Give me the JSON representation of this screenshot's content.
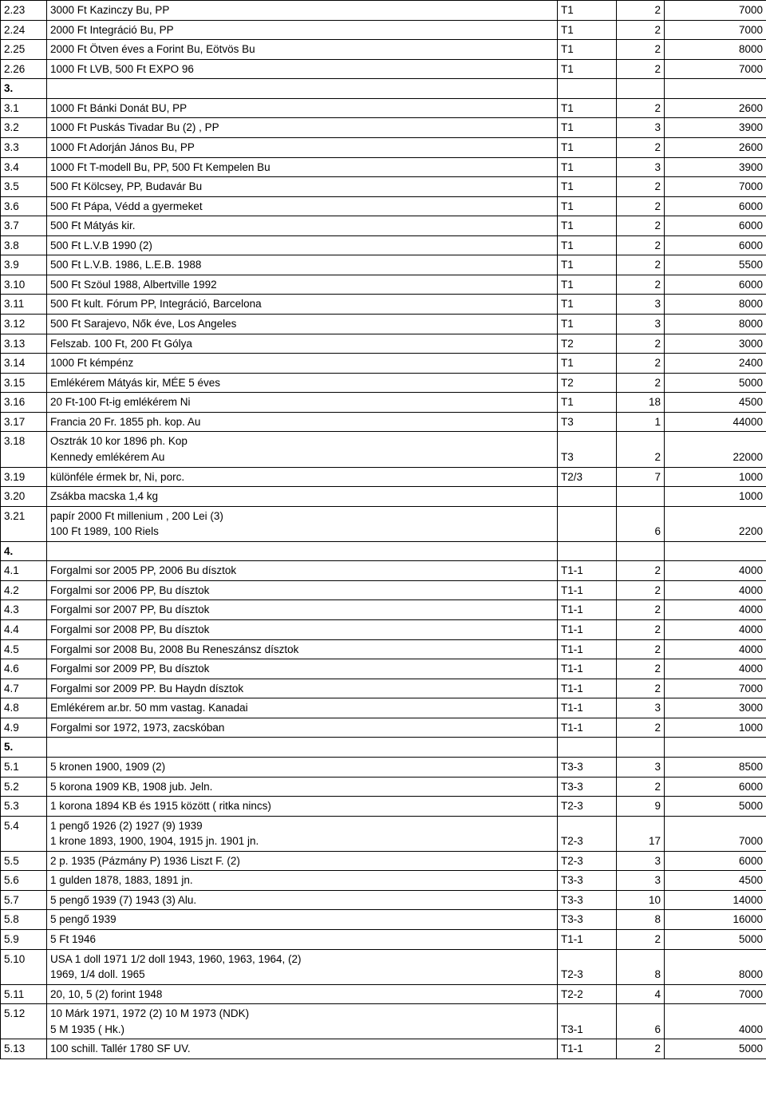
{
  "rows": [
    {
      "id": "2.23",
      "desc": "3000 Ft  Kazinczy Bu, PP",
      "grade": "T1",
      "qty": "2",
      "price": "7000"
    },
    {
      "id": "2.24",
      "desc": "2000 Ft Integráció Bu, PP",
      "grade": "T1",
      "qty": "2",
      "price": "7000"
    },
    {
      "id": "2.25",
      "desc": "2000 Ft Ötven éves a Forint   Bu, Eötvös Bu",
      "grade": "T1",
      "qty": "2",
      "price": "8000"
    },
    {
      "id": "2.26",
      "desc": "1000 Ft LVB, 500 Ft  EXPO 96",
      "grade": "T1",
      "qty": "2",
      "price": "7000"
    },
    {
      "id": "3.",
      "desc": "",
      "grade": "",
      "qty": "",
      "price": "",
      "bold": true
    },
    {
      "id": "3.1",
      "desc": "1000 Ft  Bánki Donát  BU, PP",
      "grade": "T1",
      "qty": "2",
      "price": "2600"
    },
    {
      "id": "3.2",
      "desc": "1000 Ft Puskás Tivadar  Bu (2) , PP",
      "grade": "T1",
      "qty": "3",
      "price": "3900"
    },
    {
      "id": "3.3",
      "desc": "1000 Ft Adorján János   Bu, PP",
      "grade": "T1",
      "qty": "2",
      "price": "2600"
    },
    {
      "id": "3.4",
      "desc": "1000 Ft T-modell Bu, PP, 500 Ft Kempelen  Bu",
      "grade": "T1",
      "qty": "3",
      "price": "3900"
    },
    {
      "id": "3.5",
      "desc": "500 Ft Kölcsey, PP, Budavár  Bu",
      "grade": "T1",
      "qty": "2",
      "price": "7000"
    },
    {
      "id": "3.6",
      "desc": "500 Ft  Pápa, Védd a gyermeket",
      "grade": "T1",
      "qty": "2",
      "price": "6000"
    },
    {
      "id": "3.7",
      "desc": "500 Ft  Mátyás kir.",
      "grade": "T1",
      "qty": "2",
      "price": "6000"
    },
    {
      "id": "3.8",
      "desc": "500 Ft L.V.B  1990 (2)",
      "grade": "T1",
      "qty": "2",
      "price": "6000"
    },
    {
      "id": "3.9",
      "desc": "500 Ft L.V.B. 1986, L.E.B.  1988",
      "grade": "T1",
      "qty": "2",
      "price": "5500"
    },
    {
      "id": "3.10",
      "desc": "500 Ft  Szöul  1988, Albertville  1992",
      "grade": "T1",
      "qty": "2",
      "price": "6000"
    },
    {
      "id": "3.11",
      "desc": "500 Ft kult. Fórum PP, Integráció, Barcelona",
      "grade": "T1",
      "qty": "3",
      "price": "8000"
    },
    {
      "id": "3.12",
      "desc": "500 Ft Sarajevo, Nők éve, Los Angeles",
      "grade": "T1",
      "qty": "3",
      "price": "8000"
    },
    {
      "id": "3.13",
      "desc": "Felszab. 100 Ft, 200 Ft Gólya",
      "grade": "T2",
      "qty": "2",
      "price": "3000"
    },
    {
      "id": "3.14",
      "desc": "1000 Ft kémpénz",
      "grade": "T1",
      "qty": "2",
      "price": "2400"
    },
    {
      "id": "3.15",
      "desc": "Emlékérem  Mátyás kir, MÉE 5 éves",
      "grade": "T2",
      "qty": "2",
      "price": "5000"
    },
    {
      "id": "3.16",
      "desc": "20 Ft-100 Ft-ig emlékérem   Ni",
      "grade": "T1",
      "qty": "18",
      "price": "4500"
    },
    {
      "id": "3.17",
      "desc": "Francia  20 Fr. 1855 ph. kop. Au",
      "grade": "T3",
      "qty": "1",
      "price": "44000"
    },
    {
      "id": "3.18",
      "desc": "Osztrák  10 kor  1896  ph. Kop\nKennedy emlékérem    Au",
      "grade": "T3",
      "qty": "2",
      "price": "22000",
      "multiline": true
    },
    {
      "id": "3.19",
      "desc": "különféle érmek    br, Ni, porc.",
      "grade": "T2/3",
      "qty": "7",
      "price": "1000"
    },
    {
      "id": "3.20",
      "desc": "Zsákba macska  1,4 kg",
      "grade": "",
      "qty": "",
      "price": "1000"
    },
    {
      "id": "3.21",
      "desc": "papír  2000 Ft  millenium , 200 Lei  (3)\n100 Ft  1989, 100 Riels",
      "grade": "",
      "qty": "6",
      "price": "2200",
      "multiline": true
    },
    {
      "id": "4.",
      "desc": "",
      "grade": "",
      "qty": "",
      "price": "",
      "bold": true
    },
    {
      "id": " 4.1",
      "desc": "Forgalmi sor 2005 PP, 2006 Bu dísztok",
      "grade": "T1-1",
      "qty": "2",
      "price": "4000"
    },
    {
      "id": " 4.2",
      "desc": "Forgalmi sor 2006  PP, Bu   dísztok",
      "grade": "T1-1",
      "qty": "2",
      "price": "4000"
    },
    {
      "id": " 4.3",
      "desc": "Forgalmi sor 2007  PP, Bu   dísztok",
      "grade": "T1-1",
      "qty": "2",
      "price": "4000"
    },
    {
      "id": " 4.4",
      "desc": "Forgalmi sor  2008  PP, Bu   dísztok",
      "grade": "T1-1",
      "qty": "2",
      "price": "4000"
    },
    {
      "id": " 4.5",
      "desc": "Forgalmi sor 2008  Bu, 2008  Bu  Reneszánsz  dísztok",
      "grade": "T1-1",
      "qty": "2",
      "price": "4000"
    },
    {
      "id": " 4.6",
      "desc": "Forgalmi sor  2009 PP, Bu  dísztok",
      "grade": "T1-1",
      "qty": "2",
      "price": "4000"
    },
    {
      "id": " 4.7",
      "desc": "Forgalmi sor   2009  PP. Bu  Haydn   dísztok",
      "grade": "T1-1",
      "qty": "2",
      "price": "7000"
    },
    {
      "id": " 4.8",
      "desc": "Emlékérem  ar.br.  50 mm vastag.  Kanadai",
      "grade": "T1-1",
      "qty": "3",
      "price": "3000"
    },
    {
      "id": " 4.9",
      "desc": "Forgalmi sor   1972, 1973, zacskóban",
      "grade": "T1-1",
      "qty": "2",
      "price": "1000"
    },
    {
      "id": "5.",
      "desc": "",
      "grade": "",
      "qty": "",
      "price": "",
      "bold": true
    },
    {
      "id": " 5.1",
      "desc": "5 kronen  1900, 1909 (2)",
      "grade": "T3-3",
      "qty": "3",
      "price": "8500"
    },
    {
      "id": " 5.2",
      "desc": "5 korona  1909 KB, 1908 jub. Jeln.",
      "grade": "T3-3",
      "qty": "2",
      "price": "6000"
    },
    {
      "id": " 5.3",
      "desc": "1 korona 1894 KB és 1915 között ( ritka nincs)",
      "grade": "T2-3",
      "qty": "9",
      "price": "5000"
    },
    {
      "id": " 5.4",
      "desc": "1 pengő 1926 (2) 1927 (9)  1939\n1 krone 1893, 1900, 1904, 1915 jn. 1901 jn.",
      "grade": "T2-3",
      "qty": "17",
      "price": "7000",
      "multiline": true
    },
    {
      "id": " 5.5",
      "desc": "2 p. 1935 (Pázmány P)  1936  Liszt F. (2)",
      "grade": "T2-3",
      "qty": "3",
      "price": "6000"
    },
    {
      "id": " 5.6",
      "desc": "1 gulden 1878, 1883, 1891 jn.",
      "grade": "T3-3",
      "qty": "3",
      "price": "4500"
    },
    {
      "id": " 5.7",
      "desc": "5 pengő  1939 (7)  1943  (3)  Alu.",
      "grade": "T3-3",
      "qty": "10",
      "price": "14000"
    },
    {
      "id": " 5.8",
      "desc": "5 pengő  1939",
      "grade": "T3-3",
      "qty": "8",
      "price": "16000"
    },
    {
      "id": " 5.9",
      "desc": "5 Ft  1946",
      "grade": "T1-1",
      "qty": "2",
      "price": "5000"
    },
    {
      "id": " 5.10",
      "desc": "USA  1 doll 1971  1/2 doll 1943, 1960, 1963, 1964, (2)\n1969, 1/4 doll. 1965",
      "grade": "T2-3",
      "qty": "8",
      "price": "8000",
      "multiline": true
    },
    {
      "id": " 5.11",
      "desc": "20, 10, 5 (2) forint  1948",
      "grade": "T2-2",
      "qty": "4",
      "price": "7000"
    },
    {
      "id": " 5.12",
      "desc": "10 Márk  1971, 1972 (2) 10 M  1973  (NDK)\n5 M 1935 ( Hk.)",
      "grade": "T3-1",
      "qty": "6",
      "price": "4000",
      "multiline": true
    },
    {
      "id": " 5.13",
      "desc": "100 schill. Tallér 1780 SF UV.",
      "grade": "T1-1",
      "qty": "2",
      "price": "5000"
    }
  ]
}
